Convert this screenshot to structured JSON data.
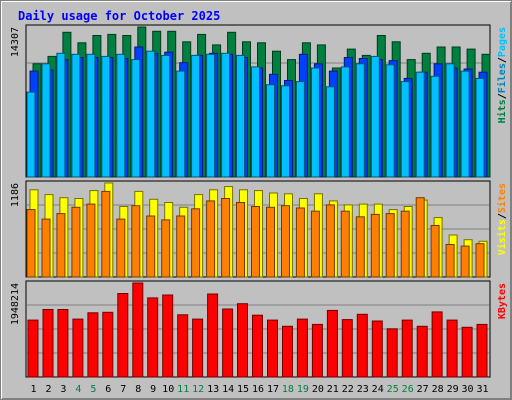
{
  "chart_data": {
    "type": "bar",
    "title": "Daily usage for October 2025",
    "categories": [
      "1",
      "2",
      "3",
      "4",
      "5",
      "6",
      "7",
      "8",
      "9",
      "10",
      "11",
      "12",
      "13",
      "14",
      "15",
      "16",
      "17",
      "18",
      "19",
      "20",
      "21",
      "22",
      "23",
      "24",
      "25",
      "26",
      "27",
      "28",
      "29",
      "30",
      "31"
    ],
    "weekend_days": [
      "4",
      "5",
      "11",
      "12",
      "18",
      "19",
      "25",
      "26"
    ],
    "panels": [
      {
        "id": "top",
        "ymax_label": "14307",
        "ylim": [
          0,
          14307
        ],
        "right_labels": [
          {
            "text": "Hits",
            "color": "#008040"
          },
          {
            "text": "/",
            "color": "#000000"
          },
          {
            "text": "Files",
            "color": "#0080c0"
          },
          {
            "text": "/",
            "color": "#000000"
          },
          {
            "text": "Pages",
            "color": "#00c0ff"
          }
        ],
        "series": [
          {
            "name": "Hits",
            "color": "#008040",
            "values": [
              10800,
              11500,
              13800,
              12800,
              13500,
              13600,
              13500,
              14307,
              13900,
              13900,
              12900,
              13600,
              12600,
              13800,
              12900,
              12800,
              12000,
              11200,
              12800,
              12600,
              10400,
              12200,
              11600,
              13500,
              12900,
              11200,
              11800,
              12400,
              12400,
              12200,
              11700
            ]
          },
          {
            "name": "Files",
            "color": "#0040ff",
            "values": [
              10100,
              10200,
              11200,
              11400,
              11400,
              11400,
              11300,
              12400,
              11800,
              11900,
              10900,
              11600,
              11800,
              11700,
              11400,
              10400,
              9800,
              9200,
              11700,
              10800,
              10100,
              11400,
              11300,
              11200,
              11100,
              9400,
              10000,
              10800,
              10400,
              10300,
              10000
            ]
          },
          {
            "name": "Pages",
            "color": "#00c0ff",
            "values": [
              8100,
              10800,
              11800,
              11700,
              11700,
              11500,
              11700,
              11200,
              12000,
              11600,
              10100,
              11600,
              11700,
              11800,
              11600,
              10500,
              8800,
              8700,
              9100,
              10400,
              8600,
              10500,
              10800,
              11500,
              10700,
              9100,
              10000,
              9600,
              10800,
              10100,
              9400
            ]
          }
        ]
      },
      {
        "id": "middle",
        "ymax_label": "1186",
        "ylim": [
          0,
          1186
        ],
        "right_labels": [
          {
            "text": "Visits",
            "color": "#ffff00"
          },
          {
            "text": "/",
            "color": "#000000"
          },
          {
            "text": "Sites",
            "color": "#ff8000"
          }
        ],
        "series": [
          {
            "name": "Visits",
            "color": "#ffff00",
            "values": [
              1100,
              1040,
              1000,
              990,
              1090,
              1186,
              890,
              1080,
              980,
              940,
              880,
              1040,
              1100,
              1140,
              1100,
              1090,
              1060,
              1050,
              990,
              1050,
              960,
              910,
              920,
              920,
              850,
              890,
              970,
              750,
              530,
              470,
              450
            ]
          },
          {
            "name": "Sites",
            "color": "#ff8000",
            "values": [
              850,
              730,
              800,
              880,
              920,
              1080,
              730,
              900,
              770,
              720,
              770,
              860,
              960,
              990,
              940,
              890,
              880,
              900,
              870,
              830,
              910,
              830,
              760,
              790,
              800,
              830,
              1000,
              650,
              410,
              390,
              420
            ]
          }
        ]
      },
      {
        "id": "bottom",
        "ymax_label": "1948214",
        "ylim": [
          0,
          1948214
        ],
        "right_labels": [
          {
            "text": "KBytes",
            "color": "#ff0000"
          }
        ],
        "series": [
          {
            "name": "KBytes",
            "color": "#ff0000",
            "values": [
              1180000,
              1400000,
              1400000,
              1200000,
              1330000,
              1340000,
              1730000,
              1948214,
              1640000,
              1700000,
              1290000,
              1200000,
              1720000,
              1410000,
              1520000,
              1280000,
              1180000,
              1050000,
              1200000,
              1090000,
              1380000,
              1190000,
              1300000,
              1160000,
              1000000,
              1180000,
              1050000,
              1350000,
              1180000,
              1030000,
              1090000
            ]
          }
        ]
      }
    ]
  }
}
